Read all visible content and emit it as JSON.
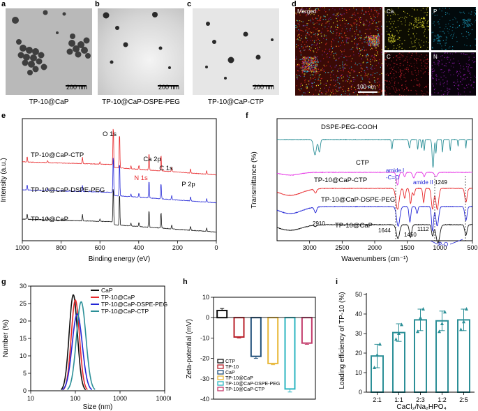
{
  "panels": {
    "a": {
      "letter": "a",
      "caption": "TP-10@CaP",
      "scale": "200 nm"
    },
    "b": {
      "letter": "b",
      "caption": "TP-10@CaP-DSPE-PEG",
      "scale": "200 nm"
    },
    "c": {
      "letter": "c",
      "caption": "TP-10@CaP-CTP",
      "scale": "200 nm"
    },
    "d": {
      "letter": "d",
      "merged": "Merged",
      "scale": "100 nm",
      "maps": [
        "Ca",
        "P",
        "C",
        "N"
      ]
    }
  },
  "colors": {
    "black": "#111111",
    "red": "#e8282b",
    "blue": "#2326d6",
    "teal": "#2b8f97",
    "magenta": "#e637e6",
    "yellow": "#e8b83a",
    "darkred": "#b81f29"
  },
  "chart_data": [
    {
      "id": "e",
      "letter": "e",
      "type": "line",
      "xlabel": "Binding energy (eV)",
      "ylabel": "Intensity (a.u.)",
      "xlim": [
        1000,
        0
      ],
      "xticks": [
        1000,
        800,
        600,
        400,
        200,
        0
      ],
      "series": [
        {
          "name": "TP-10@CaP-CTP",
          "color": "#e8282b"
        },
        {
          "name": "TP-10@CaP-DSPE-PEG",
          "color": "#2326d6"
        },
        {
          "name": "TP-10@CaP",
          "color": "#111111"
        }
      ],
      "peaks": [
        {
          "label": "O 1s",
          "x": 531
        },
        {
          "label": "Ca 2p",
          "x": 347
        },
        {
          "label": "C 1s",
          "x": 285
        },
        {
          "label": "N 1s",
          "x": 399
        },
        {
          "label": "P 2p",
          "x": 133
        }
      ]
    },
    {
      "id": "f",
      "letter": "f",
      "type": "line",
      "xlabel": "Wavenumbers (cm⁻¹)",
      "ylabel": "Transmittance (%)",
      "xlim": [
        3500,
        500
      ],
      "xticks": [
        3000,
        2500,
        2000,
        1500,
        1000,
        500
      ],
      "series": [
        {
          "name": "DSPE-PEG-COOH",
          "color": "#2b8f97"
        },
        {
          "name": "CTP",
          "color": "#e637e6"
        },
        {
          "name": "TP-10@CaP-CTP",
          "color": "#e8282b"
        },
        {
          "name": "TP-10@CaP-DSPE-PEG",
          "color": "#2326d6"
        },
        {
          "name": "TP-10@CaP",
          "color": "#111111"
        }
      ],
      "annotations": [
        "amide I",
        "-C=O",
        "amide II",
        "1249",
        "2910",
        "1644",
        "1450",
        "1112",
        "P-O"
      ]
    },
    {
      "id": "g",
      "letter": "g",
      "type": "line",
      "xlabel": "Size (nm)",
      "ylabel": "Number (%)",
      "xscale": "log",
      "xlim": [
        10,
        10000
      ],
      "xticks": [
        10,
        100,
        1000,
        10000
      ],
      "ylim": [
        0,
        30
      ],
      "yticks": [
        0,
        5,
        10,
        15,
        20,
        25,
        30
      ],
      "series": [
        {
          "name": "CaP",
          "color": "#111111",
          "peak_x": 90,
          "peak_y": 27.5
        },
        {
          "name": "TP-10@CaP",
          "color": "#e8282b",
          "peak_x": 100,
          "peak_y": 26
        },
        {
          "name": "TP-10@CaP-DSPE-PEG",
          "color": "#2326d6",
          "peak_x": 110,
          "peak_y": 22
        },
        {
          "name": "TP-10@CaP-CTP",
          "color": "#2b8f97",
          "peak_x": 135,
          "peak_y": 25.5
        }
      ]
    },
    {
      "id": "h",
      "letter": "h",
      "type": "bar",
      "ylabel": "Zeta-potential (mV)",
      "ylim": [
        -40,
        10
      ],
      "yticks": [
        10,
        0,
        -10,
        -20,
        -30,
        -40
      ],
      "categories": [
        "CTP",
        "TP-10",
        "CaP",
        "TP-10@CaP",
        "TP-10@CaP-DSPE-PEG",
        "TP-10@CaP-CTP"
      ],
      "values": [
        3.5,
        -9.5,
        -19,
        -22.5,
        -35,
        -12.5
      ],
      "errors": [
        1.0,
        0.5,
        1.0,
        0.6,
        1.5,
        0.6
      ],
      "colors": [
        "#111111",
        "#b81f29",
        "#1f4f7a",
        "#e8b83a",
        "#2bb5c0",
        "#c23a6a"
      ]
    },
    {
      "id": "i",
      "letter": "i",
      "type": "bar",
      "xlabel": "CaCl₂/Na₂HPO₄",
      "ylabel": "Loading efficiency of TP-10 (%)",
      "ylim": [
        0,
        50
      ],
      "yticks": [
        0,
        10,
        20,
        30,
        40,
        50
      ],
      "categories": [
        "2:1",
        "1:1",
        "2:3",
        "1:2",
        "2:5"
      ],
      "values": [
        18.5,
        30.5,
        37,
        36.5,
        37
      ],
      "errors": [
        6,
        4.5,
        5.5,
        5,
        5.5
      ],
      "points": [
        [
          12.5,
          19,
          24.5
        ],
        [
          27,
          30,
          34.5
        ],
        [
          31,
          38,
          42.5
        ],
        [
          31,
          35,
          41
        ],
        [
          32,
          36,
          42.5
        ]
      ],
      "color": "#2b8f97"
    }
  ]
}
